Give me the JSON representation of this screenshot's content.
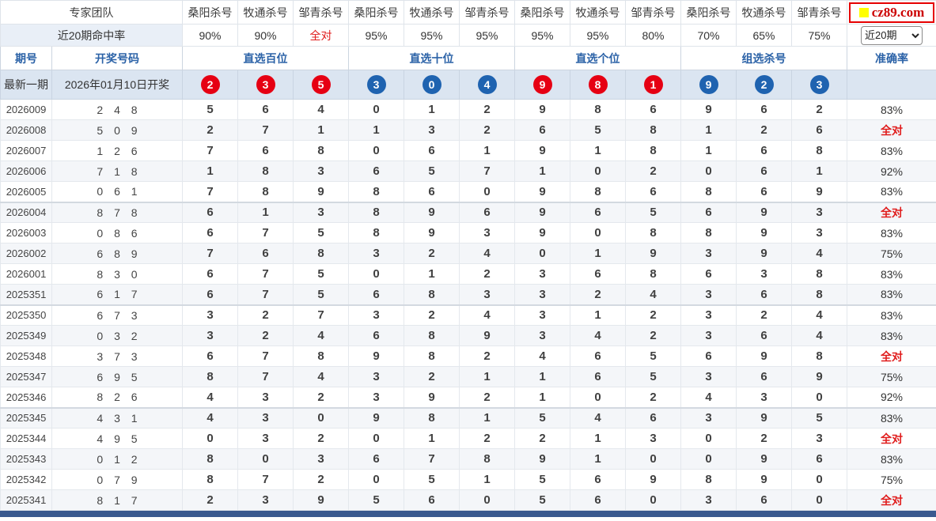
{
  "brand": {
    "logo_text": "cz89.com",
    "logo_square_color": "#ffff00"
  },
  "texts": {
    "all_correct": "全对"
  },
  "color_codes": {
    "r": "red",
    "b": "blue",
    "g": "gray"
  },
  "colors": {
    "number_red": "#e01c1c",
    "number_blue": "#2a67ad",
    "number_gray": "#c4c8ce",
    "circle_red": "#e60013",
    "circle_blue": "#1f63b0",
    "header_blue_text": "#2b62a7",
    "latest_row_bg": "#dbe5f1",
    "alt_row_bg": "#f4f6f9",
    "bottom_bar": "#3a5a8f"
  },
  "header": {
    "team_label": "专家团队",
    "hit_rate_label": "近20期命中率",
    "experts": [
      "桑阳杀号",
      "牧通杀号",
      "邹青杀号",
      "桑阳杀号",
      "牧通杀号",
      "邹青杀号",
      "桑阳杀号",
      "牧通杀号",
      "邹青杀号",
      "桑阳杀号",
      "牧通杀号",
      "邹青杀号"
    ],
    "hit_rates": [
      "90%",
      "90%",
      "全对",
      "95%",
      "95%",
      "95%",
      "95%",
      "95%",
      "80%",
      "70%",
      "65%",
      "75%"
    ],
    "period_label": "期号",
    "result_label": "开奖号码",
    "groups": [
      "直选百位",
      "直选十位",
      "直选个位",
      "组选杀号"
    ],
    "accuracy_label": "准确率",
    "range_select": {
      "value": "近20期"
    }
  },
  "latest": {
    "label": "最新一期",
    "date_text": "2026年01月10日开奖",
    "circles": [
      "2r",
      "3r",
      "5r",
      "3b",
      "0b",
      "4b",
      "9r",
      "8r",
      "1r",
      "9b",
      "2b",
      "3b"
    ]
  },
  "rows": [
    {
      "period": "2026009",
      "result": "2 4 8",
      "nums": [
        "5r",
        "6r",
        "4r",
        "0b",
        "1b",
        "2b",
        "9r",
        "8g",
        "6r",
        "9b",
        "6b",
        "2g"
      ],
      "accuracy": "83%"
    },
    {
      "period": "2026008",
      "result": "5 0 9",
      "nums": [
        "2r",
        "7r",
        "1r",
        "1b",
        "3b",
        "2b",
        "6r",
        "5r",
        "8r",
        "1b",
        "2b",
        "6b"
      ],
      "accuracy": "全对"
    },
    {
      "period": "2026007",
      "result": "1 2 6",
      "nums": [
        "7r",
        "6r",
        "8r",
        "0b",
        "6b",
        "1b",
        "9r",
        "1r",
        "8r",
        "1g",
        "6g",
        "8b"
      ],
      "accuracy": "83%"
    },
    {
      "period": "2026006",
      "result": "7 1 8",
      "nums": [
        "1r",
        "8r",
        "3r",
        "6b",
        "5b",
        "7b",
        "1r",
        "0r",
        "2r",
        "0b",
        "6b",
        "1g"
      ],
      "accuracy": "92%"
    },
    {
      "period": "2026005",
      "result": "0 6 1",
      "nums": [
        "7r",
        "8r",
        "9r",
        "8b",
        "6g",
        "0b",
        "9r",
        "8r",
        "6r",
        "8b",
        "6g",
        "9b"
      ],
      "accuracy": "83%"
    },
    {
      "period": "2026004",
      "result": "8 7 8",
      "nums": [
        "6r",
        "1r",
        "3r",
        "8b",
        "9b",
        "6b",
        "9r",
        "6r",
        "5r",
        "6b",
        "9b",
        "3b"
      ],
      "accuracy": "全对"
    },
    {
      "period": "2026003",
      "result": "0 8 6",
      "nums": [
        "6r",
        "7r",
        "5r",
        "8g",
        "9b",
        "3b",
        "9r",
        "0r",
        "8r",
        "8g",
        "9b",
        "3b"
      ],
      "accuracy": "83%"
    },
    {
      "period": "2026002",
      "result": "6 8 9",
      "nums": [
        "7r",
        "6g",
        "8r",
        "3b",
        "2b",
        "4b",
        "0r",
        "1r",
        "9g",
        "3b",
        "9g",
        "4b"
      ],
      "accuracy": "75%"
    },
    {
      "period": "2026001",
      "result": "8 3 0",
      "nums": [
        "6r",
        "7r",
        "5r",
        "0b",
        "1b",
        "2b",
        "3r",
        "6r",
        "8r",
        "6b",
        "3g",
        "8g"
      ],
      "accuracy": "83%"
    },
    {
      "period": "2025351",
      "result": "6 1 7",
      "nums": [
        "6g",
        "7r",
        "5r",
        "6b",
        "8b",
        "3b",
        "3r",
        "2r",
        "4r",
        "3b",
        "6g",
        "8b"
      ],
      "accuracy": "83%"
    },
    {
      "period": "2025350",
      "result": "6 7 3",
      "nums": [
        "3r",
        "2r",
        "7r",
        "3b",
        "2b",
        "4b",
        "3g",
        "1r",
        "2r",
        "3g",
        "2b",
        "4b"
      ],
      "accuracy": "83%"
    },
    {
      "period": "2025349",
      "result": "0 3 2",
      "nums": [
        "3r",
        "2r",
        "4r",
        "6b",
        "8b",
        "9b",
        "3r",
        "4r",
        "2g",
        "3g",
        "6b",
        "4b"
      ],
      "accuracy": "83%"
    },
    {
      "period": "2025348",
      "result": "3 7 3",
      "nums": [
        "6r",
        "7r",
        "8r",
        "9b",
        "8b",
        "2b",
        "4r",
        "6r",
        "5r",
        "6b",
        "9b",
        "8b"
      ],
      "accuracy": "全对"
    },
    {
      "period": "2025347",
      "result": "6 9 5",
      "nums": [
        "8r",
        "7r",
        "4r",
        "3b",
        "2b",
        "1b",
        "1r",
        "6r",
        "5g",
        "3b",
        "6g",
        "9g"
      ],
      "accuracy": "75%"
    },
    {
      "period": "2025346",
      "result": "8 2 6",
      "nums": [
        "4r",
        "3r",
        "2r",
        "3b",
        "9b",
        "2g",
        "1r",
        "0r",
        "2r",
        "4b",
        "3b",
        "0b"
      ],
      "accuracy": "92%"
    },
    {
      "period": "2025345",
      "result": "4 3 1",
      "nums": [
        "4g",
        "3r",
        "0r",
        "9b",
        "8b",
        "1b",
        "5r",
        "4r",
        "6r",
        "3g",
        "9b",
        "5b"
      ],
      "accuracy": "83%"
    },
    {
      "period": "2025344",
      "result": "4 9 5",
      "nums": [
        "0r",
        "3r",
        "2r",
        "0b",
        "1b",
        "2b",
        "2r",
        "1r",
        "3r",
        "0b",
        "2b",
        "3b"
      ],
      "accuracy": "全对"
    },
    {
      "period": "2025343",
      "result": "0 1 2",
      "nums": [
        "8r",
        "0g",
        "3r",
        "6b",
        "7b",
        "8b",
        "9r",
        "1r",
        "0r",
        "0g",
        "9b",
        "6b"
      ],
      "accuracy": "83%"
    },
    {
      "period": "2025342",
      "result": "0 7 9",
      "nums": [
        "8r",
        "7r",
        "2r",
        "0b",
        "5b",
        "1b",
        "5r",
        "6r",
        "9g",
        "8b",
        "9g",
        "0g"
      ],
      "accuracy": "75%"
    },
    {
      "period": "2025341",
      "result": "8 1 7",
      "nums": [
        "2r",
        "3r",
        "9r",
        "5b",
        "6b",
        "0b",
        "5r",
        "6r",
        "0r",
        "3b",
        "6b",
        "0b"
      ],
      "accuracy": "全对"
    }
  ]
}
